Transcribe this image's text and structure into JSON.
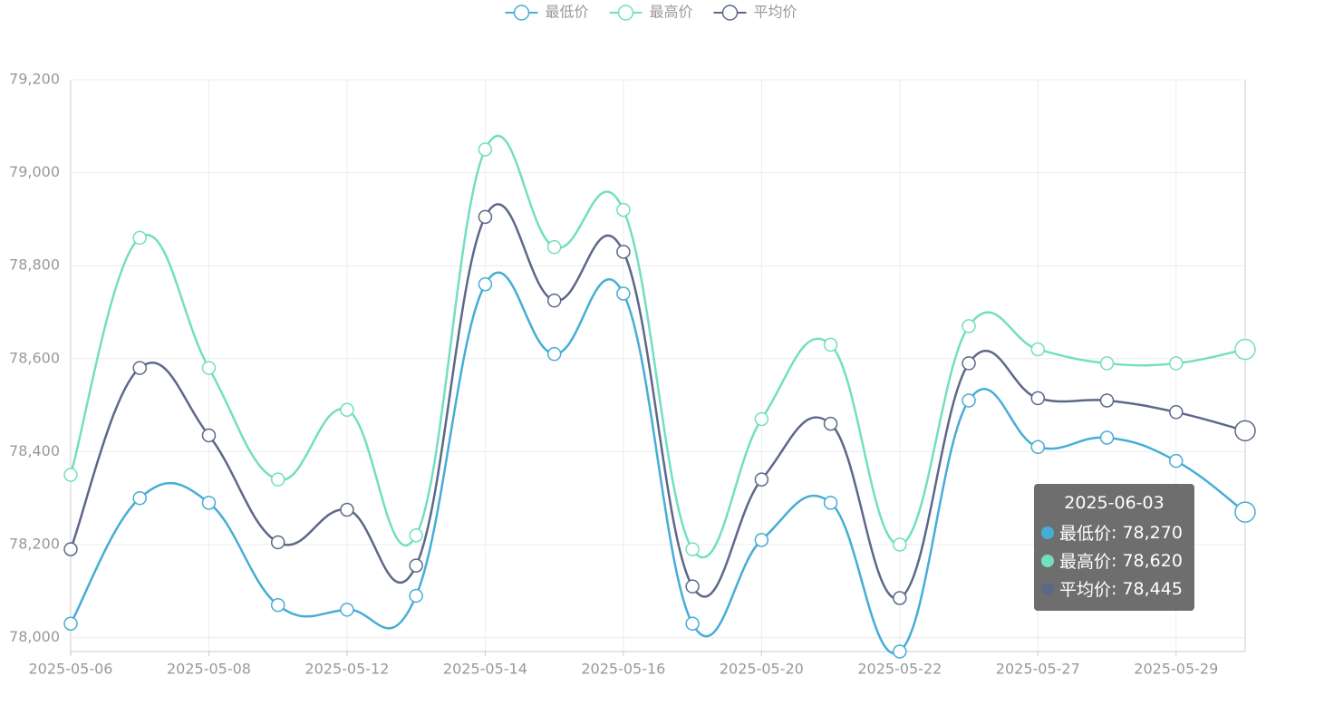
{
  "chart_data": {
    "type": "line",
    "categories": [
      "2025-05-06",
      null,
      "2025-05-08",
      null,
      "2025-05-12",
      null,
      "2025-05-14",
      null,
      "2025-05-16",
      null,
      "2025-05-20",
      null,
      "2025-05-22",
      null,
      "2025-05-27",
      null,
      "2025-05-29",
      null
    ],
    "series": [
      {
        "name": "最低价",
        "color": "#46add6",
        "values": [
          78030,
          78300,
          78290,
          78070,
          78060,
          78090,
          78760,
          78610,
          78740,
          78030,
          78210,
          78290,
          77970,
          78510,
          78410,
          78430,
          78380,
          78270
        ]
      },
      {
        "name": "最高价",
        "color": "#72dfc0",
        "values": [
          78350,
          78860,
          78580,
          78340,
          78490,
          78220,
          79050,
          78840,
          78920,
          78190,
          78470,
          78630,
          78200,
          78670,
          78620,
          78590,
          78590,
          78620
        ]
      },
      {
        "name": "平均价",
        "color": "#5d6889",
        "values": [
          78190,
          78580,
          78435,
          78205,
          78275,
          78155,
          78905,
          78725,
          78830,
          78110,
          78340,
          78460,
          78085,
          78590,
          78515,
          78510,
          78485,
          78445
        ]
      }
    ],
    "ylim": [
      77970,
      79200
    ],
    "yticks": [
      {
        "value": 78000,
        "label": "78,000"
      },
      {
        "value": 78200,
        "label": "78,200"
      },
      {
        "value": 78400,
        "label": "78,400"
      },
      {
        "value": 78600,
        "label": "78,600"
      },
      {
        "value": 78800,
        "label": "78,800"
      },
      {
        "value": 79000,
        "label": "79,000"
      },
      {
        "value": 79200,
        "label": "79,200"
      }
    ],
    "grid": true,
    "legend": "top",
    "tooltip": {
      "title": "2025-06-03",
      "value_labels": [
        "78,270",
        "78,620",
        "78,445"
      ]
    }
  }
}
